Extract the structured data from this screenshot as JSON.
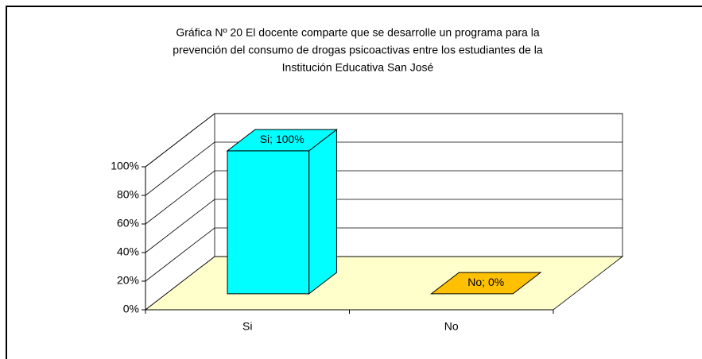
{
  "chart_data": {
    "type": "bar3d",
    "title": [
      "Gráfica Nº  20   El docente comparte que se desarrolle un programa para la",
      "prevención del consumo de drogas psicoactivas entre los estudiantes de la",
      "Institución Educativa San José"
    ],
    "categories": [
      "Si",
      "No"
    ],
    "values": [
      100,
      0
    ],
    "value_labels": [
      "Si; 100%",
      "No; 0%"
    ],
    "colors": [
      "#00ffff",
      "#ffc000"
    ],
    "floor_color": "#ffffcc",
    "ylim": [
      0,
      100
    ],
    "yticks": [
      {
        "value": 0,
        "label": "0%"
      },
      {
        "value": 20,
        "label": "20%"
      },
      {
        "value": 40,
        "label": "40%"
      },
      {
        "value": 60,
        "label": "60%"
      },
      {
        "value": 80,
        "label": "80%"
      },
      {
        "value": 100,
        "label": "100%"
      }
    ],
    "grid": true
  }
}
